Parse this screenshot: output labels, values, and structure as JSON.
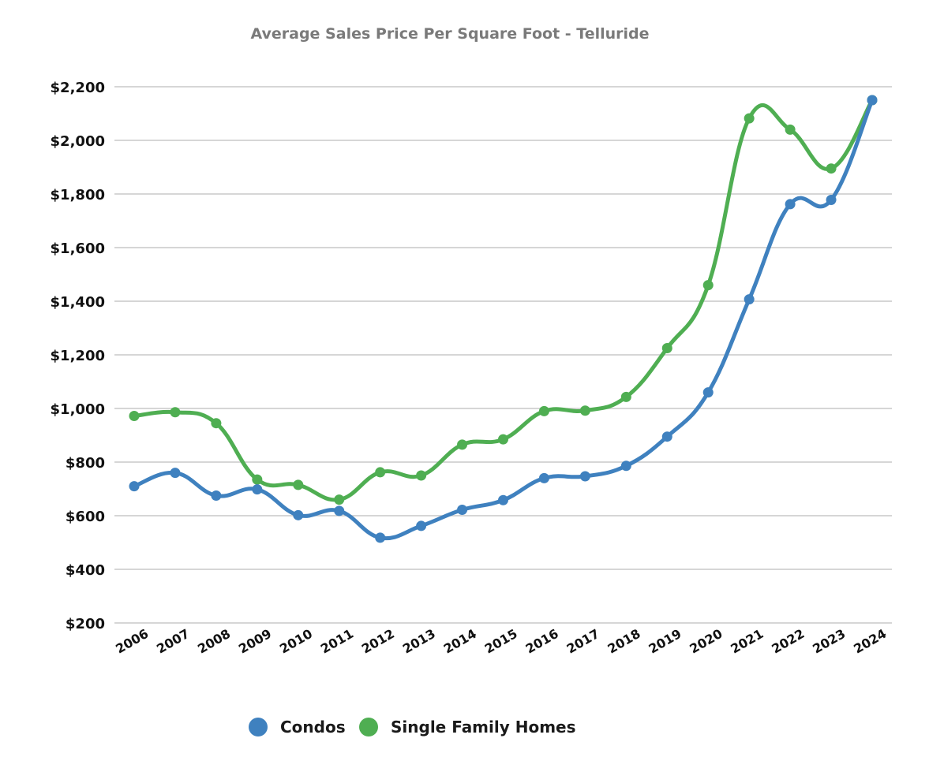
{
  "chart_data": {
    "type": "line",
    "title": "Average Sales Price Per Square Foot - Telluride",
    "xlabel": "",
    "ylabel": "",
    "x": [
      "2006",
      "2007",
      "2008",
      "2009",
      "2010",
      "2011",
      "2012",
      "2013",
      "2014",
      "2015",
      "2016",
      "2017",
      "2018",
      "2019",
      "2020",
      "2021",
      "2022",
      "2023",
      "2024"
    ],
    "ylim": [
      200,
      2200
    ],
    "yticks": [
      200,
      400,
      600,
      800,
      1000,
      1200,
      1400,
      1600,
      1800,
      2000,
      2200
    ],
    "ytick_labels": [
      "$200",
      "$400",
      "$600",
      "$800",
      "$1,000",
      "$1,200",
      "$1,400",
      "$1,600",
      "$1,800",
      "$2,000",
      "$2,200"
    ],
    "grid": true,
    "legend_position": "bottom",
    "series": [
      {
        "name": "Condos",
        "color": "#3f81bf",
        "values": [
          710,
          760,
          675,
          698,
          602,
          618,
          518,
          562,
          622,
          658,
          740,
          747,
          786,
          895,
          1060,
          1407,
          1762,
          1778,
          2150
        ]
      },
      {
        "name": "Single Family Homes",
        "color": "#4fae52",
        "values": [
          972,
          986,
          945,
          735,
          715,
          660,
          762,
          750,
          865,
          885,
          990,
          992,
          1043,
          1225,
          1460,
          2082,
          2040,
          1895,
          2150
        ]
      }
    ]
  }
}
